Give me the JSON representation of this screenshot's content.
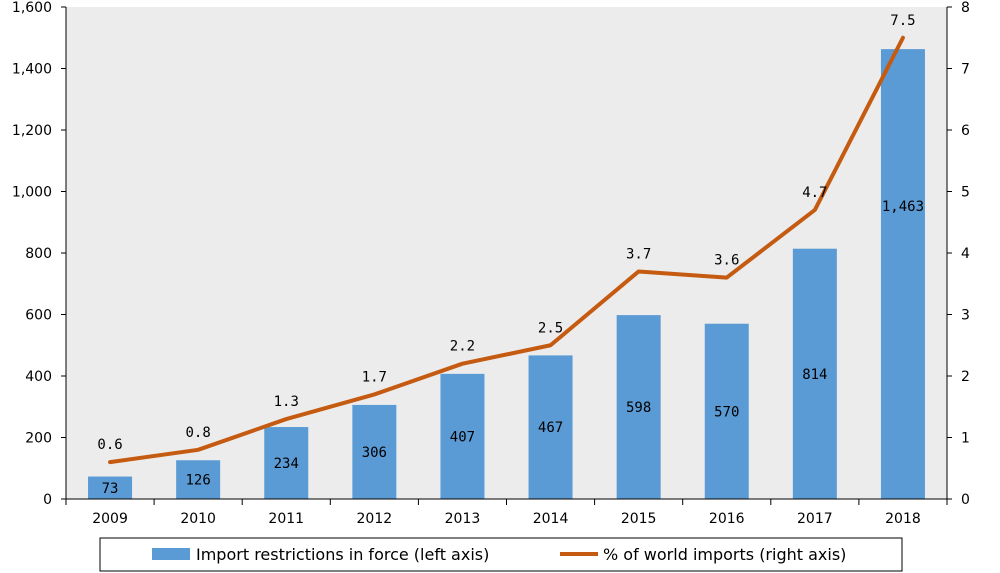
{
  "chart_data": {
    "type": "bar",
    "categories": [
      "2009",
      "2010",
      "2011",
      "2012",
      "2013",
      "2014",
      "2015",
      "2016",
      "2017",
      "2018"
    ],
    "series": [
      {
        "name": "Import restrictions in force (left axis)",
        "type": "bar",
        "axis": "left",
        "color": "#5b9bd5",
        "values": [
          73,
          126,
          234,
          306,
          407,
          467,
          598,
          570,
          814,
          1463
        ],
        "value_labels": [
          "73",
          "126",
          "234",
          "306",
          "407",
          "467",
          "598",
          "570",
          "814",
          "1,463"
        ]
      },
      {
        "name": "% of world imports (right axis)",
        "type": "line",
        "axis": "right",
        "color": "#c55a11",
        "values": [
          0.6,
          0.8,
          1.3,
          1.7,
          2.2,
          2.5,
          3.7,
          3.6,
          4.7,
          7.5
        ],
        "value_labels": [
          "0.6",
          "0.8",
          "1.3",
          "1.7",
          "2.2",
          "2.5",
          "3.7",
          "3.6",
          "4.7",
          "7.5"
        ]
      }
    ],
    "y_left": {
      "range": [
        0,
        1600
      ],
      "ticks": [
        0,
        200,
        400,
        600,
        800,
        1000,
        1200,
        1400,
        1600
      ],
      "tick_labels": [
        "0",
        "200",
        "400",
        "600",
        "800",
        "1,000",
        "1,200",
        "1,400",
        "1,600"
      ]
    },
    "y_right": {
      "range": [
        0,
        8
      ],
      "ticks": [
        0,
        1,
        2,
        3,
        4,
        5,
        6,
        7,
        8
      ],
      "tick_labels": [
        "0",
        "1",
        "2",
        "3",
        "4",
        "5",
        "6",
        "7",
        "8"
      ]
    },
    "plot_background": "#ececec",
    "grid": false,
    "legend_position": "bottom"
  }
}
